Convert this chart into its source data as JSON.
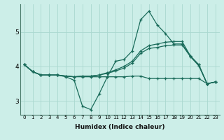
{
  "xlabel": "Humidex (Indice chaleur)",
  "bg_color": "#cceee8",
  "grid_color": "#aad8d0",
  "line_color": "#1a6b5a",
  "xlim": [
    -0.5,
    23.5
  ],
  "ylim": [
    2.6,
    5.8
  ],
  "yticks": [
    3,
    4,
    5
  ],
  "xticks": [
    0,
    1,
    2,
    3,
    4,
    5,
    6,
    7,
    8,
    9,
    10,
    11,
    12,
    13,
    14,
    15,
    16,
    17,
    18,
    19,
    20,
    21,
    22,
    23
  ],
  "series": [
    {
      "x": [
        0,
        1,
        2,
        3,
        4,
        5,
        6,
        7,
        8,
        9,
        10,
        11,
        12,
        13,
        14,
        15,
        16,
        17,
        18,
        19,
        20,
        21,
        22,
        23
      ],
      "y": [
        4.05,
        3.85,
        3.75,
        3.75,
        3.75,
        3.7,
        3.6,
        2.85,
        2.75,
        3.2,
        3.7,
        4.15,
        4.2,
        4.45,
        5.35,
        5.6,
        5.2,
        4.95,
        4.65,
        4.65,
        4.3,
        4.05,
        3.5,
        3.55
      ]
    },
    {
      "x": [
        0,
        1,
        2,
        3,
        4,
        5,
        6,
        7,
        8,
        9,
        10,
        11,
        12,
        13,
        14,
        15,
        16,
        17,
        18,
        19,
        20,
        21,
        22,
        23
      ],
      "y": [
        4.05,
        3.85,
        3.75,
        3.75,
        3.75,
        3.72,
        3.7,
        3.72,
        3.72,
        3.75,
        3.82,
        3.9,
        4.0,
        4.15,
        4.45,
        4.6,
        4.65,
        4.7,
        4.72,
        4.72,
        4.3,
        4.05,
        3.5,
        3.55
      ]
    },
    {
      "x": [
        0,
        1,
        2,
        3,
        4,
        5,
        6,
        7,
        8,
        9,
        10,
        11,
        12,
        13,
        14,
        15,
        16,
        17,
        18,
        19,
        20,
        21,
        22,
        23
      ],
      "y": [
        4.05,
        3.85,
        3.75,
        3.75,
        3.75,
        3.72,
        3.7,
        3.72,
        3.72,
        3.75,
        3.8,
        3.87,
        3.95,
        4.1,
        4.38,
        4.52,
        4.55,
        4.6,
        4.62,
        4.62,
        4.28,
        4.02,
        3.5,
        3.55
      ]
    },
    {
      "x": [
        0,
        1,
        2,
        3,
        4,
        5,
        6,
        7,
        8,
        9,
        10,
        11,
        12,
        13,
        14,
        15,
        16,
        17,
        18,
        19,
        20,
        21,
        22,
        23
      ],
      "y": [
        4.05,
        3.85,
        3.75,
        3.75,
        3.75,
        3.72,
        3.7,
        3.7,
        3.7,
        3.7,
        3.7,
        3.7,
        3.7,
        3.72,
        3.72,
        3.65,
        3.65,
        3.65,
        3.65,
        3.65,
        3.65,
        3.65,
        3.5,
        3.55
      ]
    }
  ]
}
